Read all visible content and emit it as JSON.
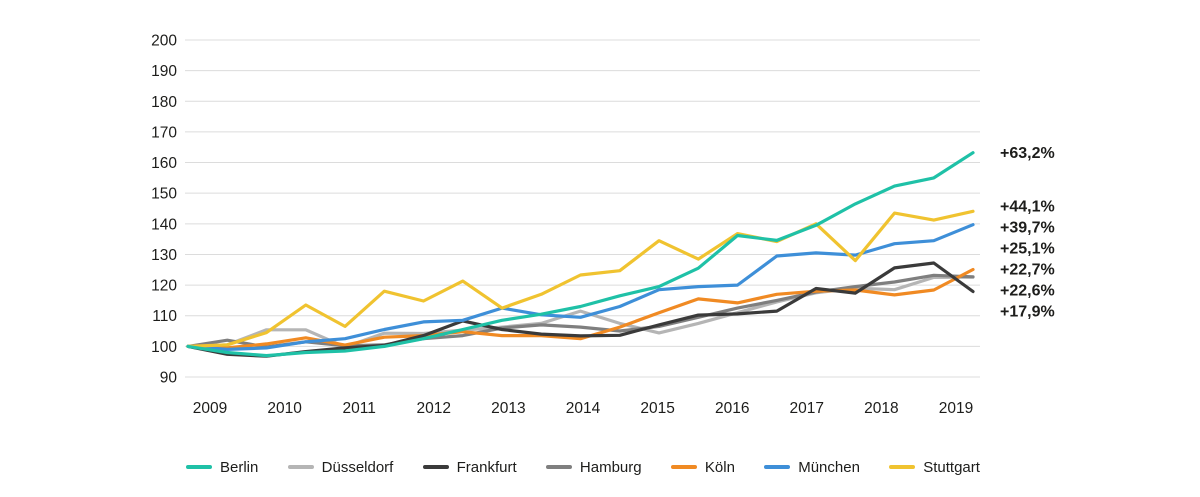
{
  "chart_data": {
    "type": "line",
    "title": "",
    "x_labels": [
      "2009",
      "2010",
      "2011",
      "2012",
      "2013",
      "2014",
      "2015",
      "2016",
      "2017",
      "2018",
      "2019"
    ],
    "y_ticks": [
      200,
      190,
      180,
      170,
      160,
      150,
      140,
      130,
      120,
      110,
      100,
      90
    ],
    "ylim": [
      90,
      200
    ],
    "x_start": 2009,
    "x_end": 2019,
    "points_per_year": 2,
    "grid": "horizontal-only",
    "legend_position": "bottom",
    "grid_color": "#dcdcdc",
    "text_color": "#1d1d1b",
    "series": [
      {
        "name": "Berlin",
        "color": "#1fc1a7",
        "end_label": "+63,2%",
        "values": [
          100,
          98,
          97,
          98,
          98.5,
          100,
          102.5,
          105.5,
          108.5,
          110.5,
          113,
          116.5,
          119.5,
          125.5,
          136.2,
          134.6,
          139.5,
          146.5,
          152.3,
          155,
          163.2
        ]
      },
      {
        "name": "Düsseldorf",
        "color": "#b5b5b5",
        "end_label": "+22,6%",
        "values": [
          100,
          100.5,
          105.4,
          105.4,
          99.8,
          104.3,
          104.2,
          105.3,
          106.3,
          107.5,
          111.5,
          107.5,
          104.4,
          107.5,
          111,
          114.5,
          117.5,
          119,
          118.5,
          122.5,
          122.6
        ]
      },
      {
        "name": "Frankfurt",
        "color": "#3a3a3a",
        "end_label": "+17,9%",
        "values": [
          100,
          97.4,
          96.8,
          98.3,
          99.5,
          100.3,
          103.5,
          108.3,
          105.5,
          104,
          103.4,
          103.6,
          107,
          110.2,
          110.6,
          111.5,
          118.9,
          117.4,
          125.6,
          127.2,
          117.9
        ]
      },
      {
        "name": "Hamburg",
        "color": "#7f7f7f",
        "end_label": "+22,7%",
        "values": [
          100,
          102,
          99.8,
          101.5,
          100.2,
          100.5,
          102.5,
          103.5,
          106,
          107,
          106.3,
          105,
          106.5,
          109.5,
          112.5,
          115,
          117.7,
          119.5,
          121,
          123.2,
          122.7
        ]
      },
      {
        "name": "Köln",
        "color": "#f08a23",
        "end_label": "+25,1%",
        "values": [
          100,
          99.5,
          100.8,
          102.8,
          100.4,
          103,
          103.5,
          104.8,
          103.5,
          103.5,
          102.5,
          106.3,
          111,
          115.5,
          114.2,
          117,
          118,
          118.4,
          116.8,
          118.4,
          125.1
        ]
      },
      {
        "name": "München",
        "color": "#3e8fd8",
        "end_label": "+39,7%",
        "values": [
          100,
          99,
          99.5,
          101.5,
          102.5,
          105.5,
          108,
          108.5,
          112.5,
          110.3,
          109.5,
          113,
          118.5,
          119.5,
          120,
          129.5,
          130.5,
          129.8,
          133.5,
          134.5,
          139.7
        ]
      },
      {
        "name": "Stuttgart",
        "color": "#f0c330",
        "end_label": "+44,1%",
        "values": [
          100,
          100.5,
          104.5,
          113.5,
          106.5,
          118,
          114.8,
          121.3,
          112.5,
          117,
          123.3,
          124.7,
          134.5,
          128.5,
          136.8,
          134.2,
          140,
          128,
          143.5,
          141.2,
          144.1
        ]
      }
    ]
  }
}
